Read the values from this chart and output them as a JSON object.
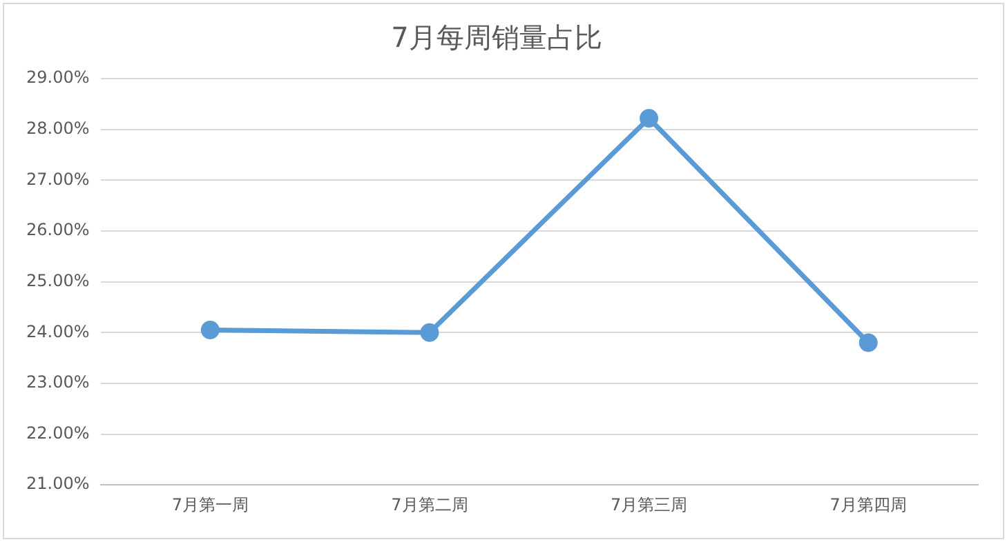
{
  "chart_data": {
    "type": "line",
    "title": "7月每周销量占比",
    "categories": [
      "7月第一周",
      "7月第二周",
      "7月第三周",
      "7月第四周"
    ],
    "series": [
      {
        "color": "#5b9bd5",
        "values": [
          24.05,
          24.0,
          28.22,
          23.8
        ]
      }
    ],
    "ylim": [
      21,
      29
    ],
    "yticks": [
      {
        "value": 21,
        "label": "21.00%"
      },
      {
        "value": 22,
        "label": "22.00%"
      },
      {
        "value": 23,
        "label": "23.00%"
      },
      {
        "value": 24,
        "label": "24.00%"
      },
      {
        "value": 25,
        "label": "25.00%"
      },
      {
        "value": 26,
        "label": "26.00%"
      },
      {
        "value": 27,
        "label": "27.00%"
      },
      {
        "value": 28,
        "label": "28.00%"
      },
      {
        "value": 29,
        "label": "29.00%"
      }
    ],
    "grid": "y",
    "legend": false,
    "marker": "circle",
    "line_style": "solid"
  }
}
